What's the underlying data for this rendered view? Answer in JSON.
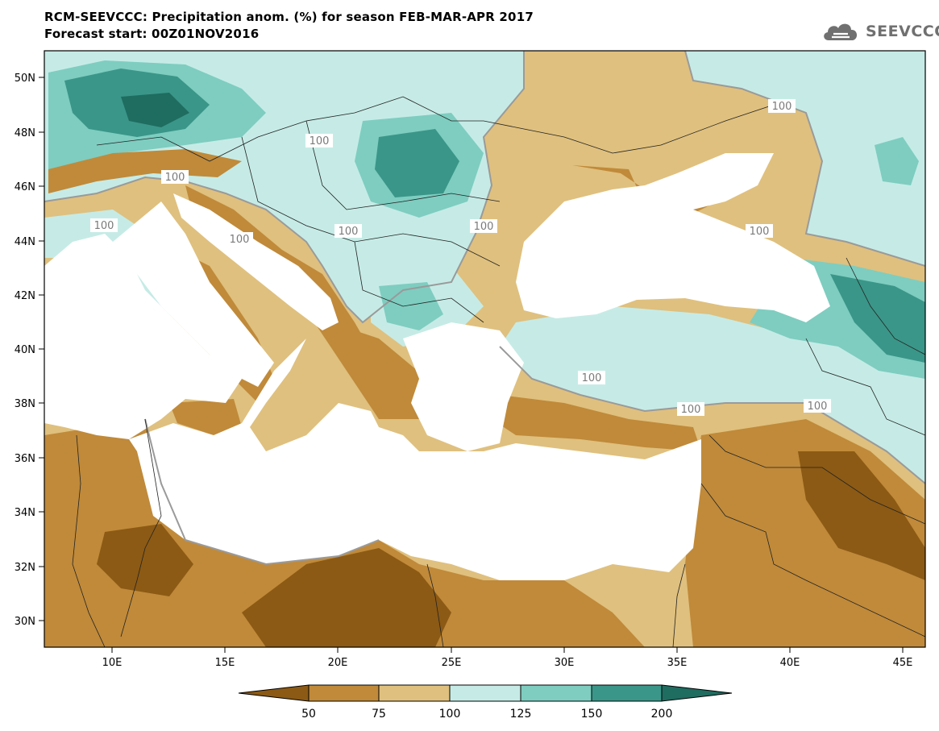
{
  "header": {
    "title": "RCM-SEEVCCC: Precipitation anom. (%) for season FEB-MAR-APR 2017",
    "subtitle": "Forecast start: 00Z01NOV2016"
  },
  "logo": {
    "text": "SEEVCCC",
    "icon": "cloud-icon",
    "color": "#707070"
  },
  "map": {
    "lon_range": [
      7,
      46
    ],
    "lat_range": [
      29,
      51
    ],
    "lat_ticks": [
      "50N",
      "48N",
      "46N",
      "44N",
      "42N",
      "40N",
      "38N",
      "36N",
      "34N",
      "32N",
      "30N"
    ],
    "lon_ticks": [
      "10E",
      "15E",
      "20E",
      "25E",
      "30E",
      "35E",
      "40E",
      "45E"
    ],
    "contour_labels": [
      "100",
      "100",
      "100",
      "100",
      "100",
      "100",
      "100",
      "100",
      "100",
      "100",
      "100"
    ],
    "fill_colors": {
      "lt50": "#8c5a14",
      "50to75": "#c08a3a",
      "75to100": "#dfc07e",
      "100to125": "#c6ebe6",
      "125to150": "#7ecdc0",
      "150to200": "#3a9688",
      "gt200": "#1f6c60"
    },
    "sea_color": "#ffffff",
    "contour_line_color": "#9a9a9a"
  },
  "colorbar": {
    "labels": [
      "50",
      "75",
      "100",
      "125",
      "150",
      "200"
    ],
    "colors": [
      "#8c5a14",
      "#c08a3a",
      "#dfc07e",
      "#c6ebe6",
      "#7ecdc0",
      "#3a9688",
      "#1f6c60"
    ]
  }
}
